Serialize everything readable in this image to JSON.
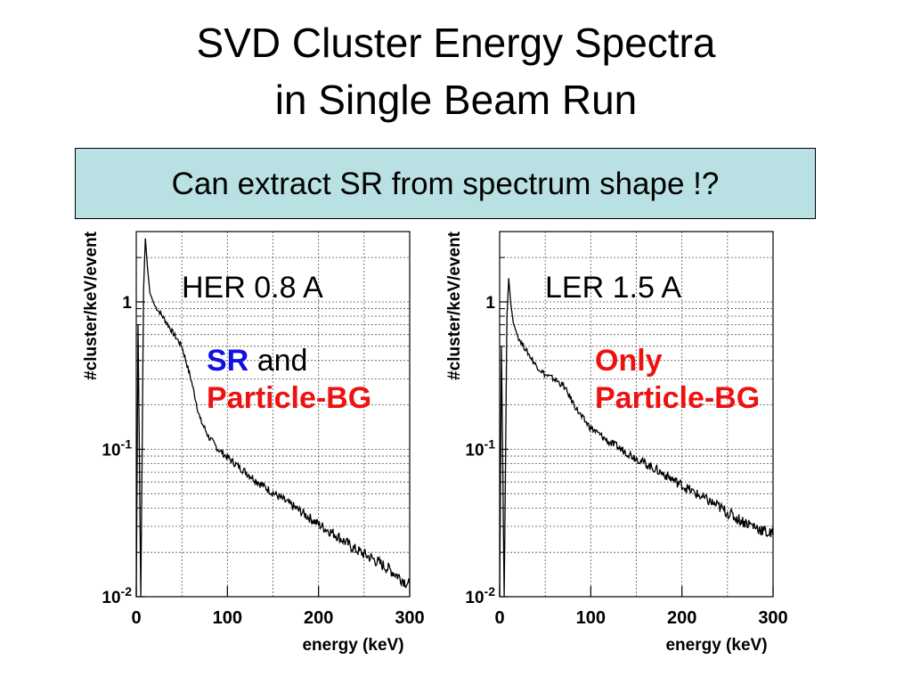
{
  "slide": {
    "title_line1": "SVD Cluster Energy Spectra",
    "title_line2": "in Single Beam Run",
    "callout": "Can extract SR from spectrum shape !?"
  },
  "annotations": {
    "left": {
      "sr": "SR",
      "and": "and",
      "pbg": "Particle-BG",
      "sr_color": "#1010e0",
      "pbg_color": "#ee1111"
    },
    "right": {
      "only": "Only",
      "pbg": "Particle-BG",
      "color": "#ee1111"
    }
  },
  "chart_data": [
    {
      "type": "line",
      "title": "HER 0.8 A",
      "xlabel": "energy (keV)",
      "ylabel": "#cluster/keV/event",
      "xlim": [
        0,
        300
      ],
      "ylim": [
        0.01,
        3
      ],
      "yscale": "log",
      "grid": true,
      "xticks": [
        "0",
        "100",
        "200",
        "300"
      ],
      "yticks": [
        {
          "base": "1",
          "exp": ""
        },
        {
          "base": "10",
          "exp": "-1"
        },
        {
          "base": "10",
          "exp": "-2"
        }
      ],
      "x": [
        0,
        2,
        5,
        8,
        10,
        12,
        15,
        20,
        30,
        40,
        50,
        60,
        70,
        80,
        90,
        100,
        120,
        140,
        160,
        180,
        200,
        220,
        240,
        260,
        280,
        300
      ],
      "y": [
        0.01,
        0.7,
        0.01,
        1.2,
        2.7,
        1.8,
        1.15,
        0.95,
        0.78,
        0.62,
        0.5,
        0.3,
        0.16,
        0.12,
        0.1,
        0.088,
        0.07,
        0.056,
        0.046,
        0.038,
        0.031,
        0.026,
        0.021,
        0.018,
        0.015,
        0.012
      ]
    },
    {
      "type": "line",
      "title": "LER 1.5 A",
      "xlabel": "energy (keV)",
      "ylabel": "#cluster/keV/event",
      "xlim": [
        0,
        300
      ],
      "ylim": [
        0.01,
        3
      ],
      "yscale": "log",
      "grid": true,
      "xticks": [
        "0",
        "100",
        "200",
        "300"
      ],
      "yticks": [
        {
          "base": "1",
          "exp": ""
        },
        {
          "base": "10",
          "exp": "-1"
        },
        {
          "base": "10",
          "exp": "-2"
        }
      ],
      "x": [
        0,
        2,
        5,
        8,
        10,
        12,
        15,
        20,
        30,
        40,
        50,
        60,
        70,
        80,
        90,
        100,
        120,
        140,
        160,
        180,
        200,
        220,
        240,
        260,
        280,
        300
      ],
      "y": [
        0.01,
        0.5,
        0.01,
        0.8,
        1.45,
        1.0,
        0.72,
        0.58,
        0.46,
        0.37,
        0.32,
        0.3,
        0.27,
        0.21,
        0.165,
        0.14,
        0.112,
        0.095,
        0.08,
        0.068,
        0.057,
        0.048,
        0.041,
        0.034,
        0.03,
        0.026
      ]
    }
  ]
}
